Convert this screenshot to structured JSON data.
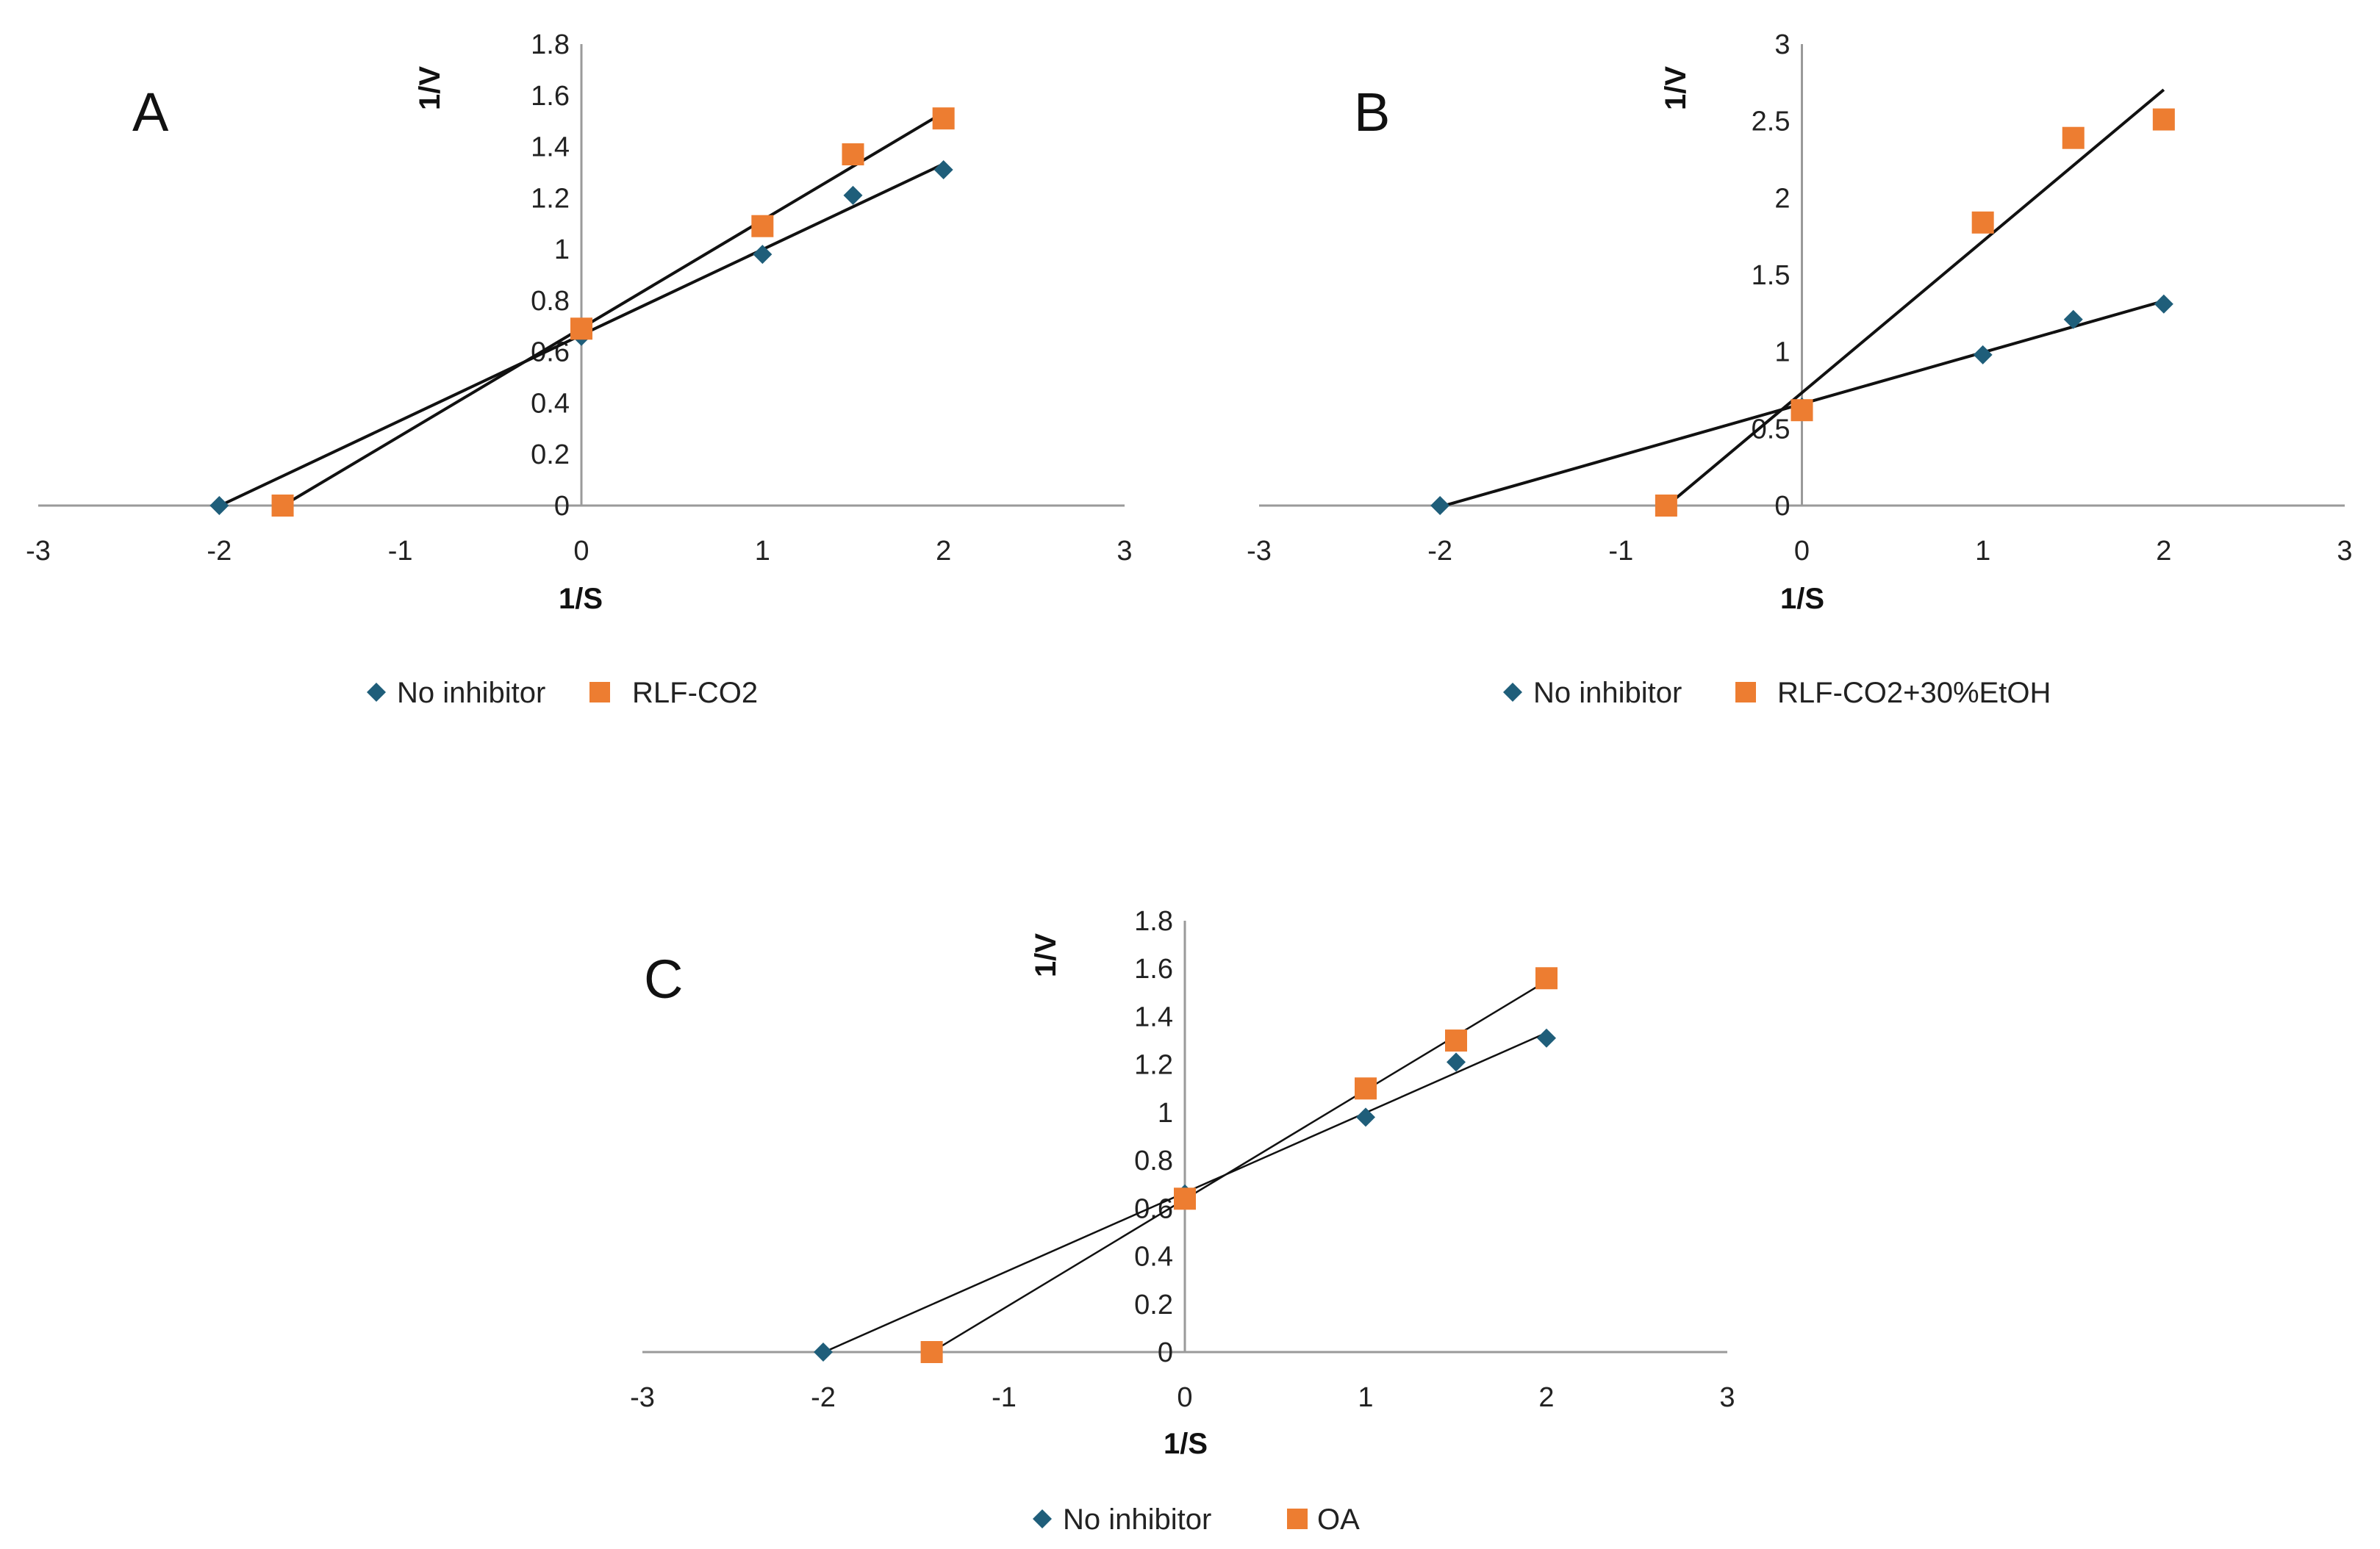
{
  "colors": {
    "no_inhibitor": "#1F5E7A",
    "inhibitor": "#ED7D31",
    "axis": "#9a9a9a",
    "trend": "#111111"
  },
  "chart_data": [
    {
      "type": "scatter",
      "panel_label": "A",
      "xlabel": "1/S",
      "ylabel": "1/V",
      "xlim": [
        -3,
        3
      ],
      "ylim": [
        0,
        1.8
      ],
      "x_ticks": [
        "-3",
        "-2",
        "-1",
        "0",
        "1",
        "2",
        "3"
      ],
      "y_ticks": [
        "0",
        "0.2",
        "0.4",
        "0.6",
        "0.8",
        "1",
        "1.2",
        "1.4",
        "1.6",
        "1.8"
      ],
      "trendlines": true,
      "series": [
        {
          "name": "No inhibitor",
          "marker": "diamond",
          "x": [
            -2,
            0,
            1,
            1.5,
            2
          ],
          "y": [
            0,
            0.66,
            0.98,
            1.21,
            1.31
          ]
        },
        {
          "name": "RLF-CO2",
          "marker": "square",
          "x": [
            -1.65,
            0,
            1,
            1.5,
            2
          ],
          "y": [
            0,
            0.69,
            1.09,
            1.37,
            1.51
          ]
        }
      ]
    },
    {
      "type": "scatter",
      "panel_label": "B",
      "xlabel": "1/S",
      "ylabel": "1/V",
      "xlim": [
        -3,
        3
      ],
      "ylim": [
        0,
        3
      ],
      "x_ticks": [
        "-3",
        "-2",
        "-1",
        "0",
        "1",
        "2",
        "3"
      ],
      "y_ticks": [
        "0",
        "0.5",
        "1",
        "1.5",
        "2",
        "2.5",
        "3"
      ],
      "trendlines": true,
      "series": [
        {
          "name": "No inhibitor",
          "marker": "diamond",
          "x": [
            -2,
            0,
            1,
            1.5,
            2
          ],
          "y": [
            0,
            0.64,
            0.98,
            1.21,
            1.31
          ]
        },
        {
          "name": "RLF-CO2+30%EtOH",
          "marker": "square",
          "x": [
            -0.75,
            0,
            1,
            1.5,
            2
          ],
          "y": [
            0,
            0.62,
            1.84,
            2.39,
            2.51
          ]
        }
      ]
    },
    {
      "type": "scatter",
      "panel_label": "C",
      "xlabel": "1/S",
      "ylabel": "1/V",
      "xlim": [
        -3,
        3
      ],
      "ylim": [
        0,
        1.8
      ],
      "x_ticks": [
        "-3",
        "-2",
        "-1",
        "0",
        "1",
        "2",
        "3"
      ],
      "y_ticks": [
        "0",
        "0.2",
        "0.4",
        "0.6",
        "0.8",
        "1",
        "1.2",
        "1.4",
        "1.6",
        "1.8"
      ],
      "trendlines": true,
      "series": [
        {
          "name": "No inhibitor",
          "marker": "diamond",
          "x": [
            -2,
            0,
            1,
            1.5,
            2
          ],
          "y": [
            0,
            0.66,
            0.98,
            1.21,
            1.31
          ]
        },
        {
          "name": "OA",
          "marker": "square",
          "x": [
            -1.4,
            0,
            1,
            1.5,
            2
          ],
          "y": [
            0,
            0.64,
            1.1,
            1.3,
            1.56
          ]
        }
      ]
    }
  ]
}
